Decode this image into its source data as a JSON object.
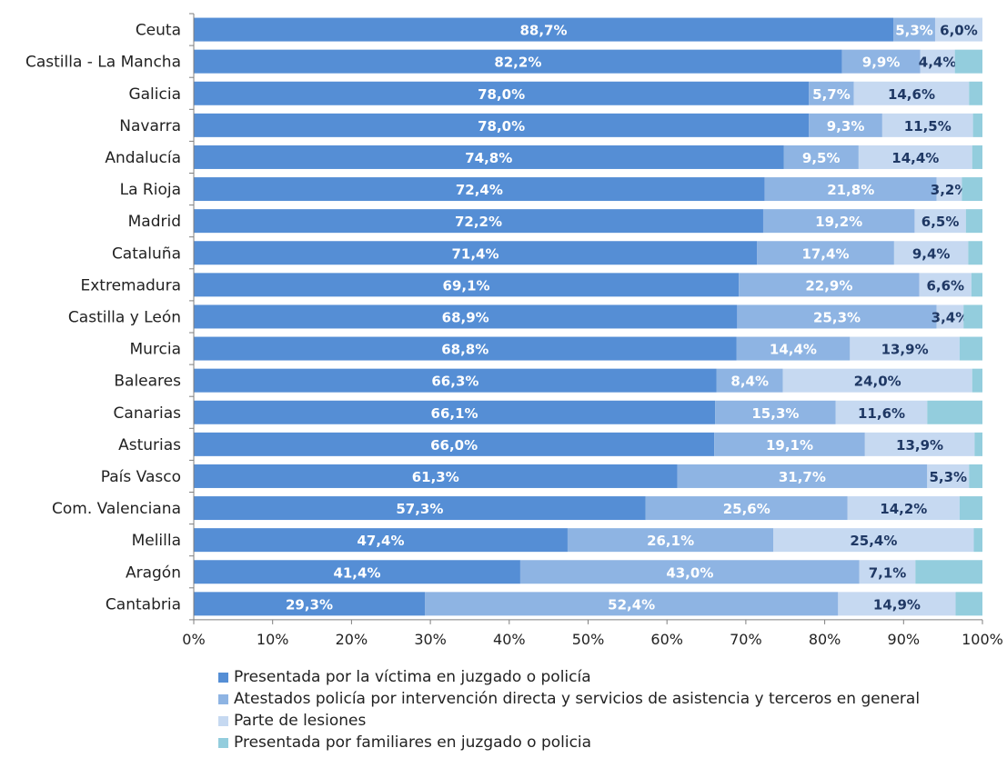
{
  "chart_data": {
    "type": "bar",
    "orientation": "horizontal",
    "stacked": true,
    "categories": [
      "Ceuta",
      "Castilla - La Mancha",
      "Galicia",
      "Navarra",
      "Andalucía",
      "La Rioja",
      "Madrid",
      "Cataluña",
      "Extremadura",
      "Castilla y León",
      "Murcia",
      "Baleares",
      "Canarias",
      "Asturias",
      "País Vasco",
      "Com. Valenciana",
      "Melilla",
      "Aragón",
      "Cantabria"
    ],
    "series": [
      {
        "name": "Presentada por la víctima en juzgado o policía",
        "color": "#558ED5",
        "values": [
          88.7,
          82.2,
          78.0,
          78.0,
          74.8,
          72.4,
          72.2,
          71.4,
          69.1,
          68.9,
          68.8,
          66.3,
          66.1,
          66.0,
          61.3,
          57.3,
          47.4,
          41.4,
          29.3
        ],
        "labels": [
          "88,7%",
          "82,2%",
          "78,0%",
          "78,0%",
          "74,8%",
          "72,4%",
          "72,2%",
          "71,4%",
          "69,1%",
          "68,9%",
          "68,8%",
          "66,3%",
          "66,1%",
          "66,0%",
          "61,3%",
          "57,3%",
          "47,4%",
          "41,4%",
          "29,3%"
        ]
      },
      {
        "name": "Atestados policía por intervención directa y servicios de asistencia y terceros en general",
        "color": "#8EB4E3",
        "values": [
          5.3,
          9.9,
          5.7,
          9.3,
          9.5,
          21.8,
          19.2,
          17.4,
          22.9,
          25.3,
          14.4,
          8.4,
          15.3,
          19.1,
          31.7,
          25.6,
          26.1,
          43.0,
          52.4
        ],
        "labels": [
          "5,3%",
          "9,9%",
          "5,7%",
          "9,3%",
          "9,5%",
          "21,8%",
          "19,2%",
          "17,4%",
          "22,9%",
          "25,3%",
          "14,4%",
          "8,4%",
          "15,3%",
          "19,1%",
          "31,7%",
          "25,6%",
          "26,1%",
          "43,0%",
          "52,4%"
        ]
      },
      {
        "name": "Parte de lesiones",
        "color": "#C6D9F1",
        "values": [
          6.0,
          4.4,
          14.6,
          11.5,
          14.4,
          3.2,
          6.5,
          9.4,
          6.6,
          3.4,
          13.9,
          24.0,
          11.6,
          13.9,
          5.3,
          14.2,
          25.4,
          7.1,
          14.9
        ],
        "labels": [
          "6,0%",
          "4,4%",
          "14,6%",
          "11,5%",
          "14,4%",
          "3,2%",
          "6,5%",
          "9,4%",
          "6,6%",
          "3,4%",
          "13,9%",
          "24,0%",
          "11,6%",
          "13,9%",
          "5,3%",
          "14,2%",
          "25,4%",
          "7,1%",
          "14,9%"
        ]
      },
      {
        "name": "Presentada por familiares en juzgado o policia",
        "color": "#93CDDD",
        "values": [
          0.0,
          3.5,
          1.7,
          1.2,
          1.3,
          2.6,
          2.1,
          1.8,
          1.4,
          2.4,
          2.9,
          1.3,
          7.0,
          1.0,
          1.7,
          2.9,
          1.1,
          8.5,
          3.4
        ],
        "labels": []
      }
    ],
    "xlim": [
      0,
      100
    ],
    "xticks": [
      "0%",
      "10%",
      "20%",
      "30%",
      "40%",
      "50%",
      "60%",
      "70%",
      "80%",
      "90%",
      "100%"
    ],
    "grid": false,
    "legend_position": "bottom-left",
    "title": "",
    "xlabel": "",
    "ylabel": ""
  }
}
